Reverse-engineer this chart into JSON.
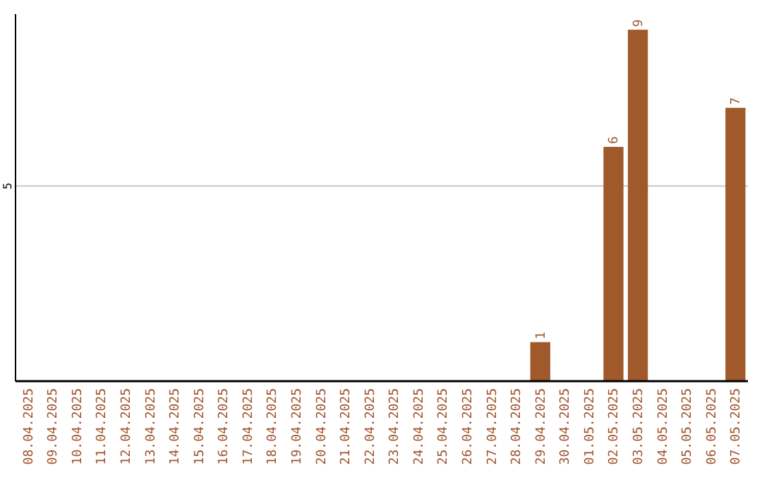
{
  "chart_data": {
    "type": "bar",
    "categories": [
      "08.04.2025",
      "09.04.2025",
      "10.04.2025",
      "11.04.2025",
      "12.04.2025",
      "13.04.2025",
      "14.04.2025",
      "15.04.2025",
      "16.04.2025",
      "17.04.2025",
      "18.04.2025",
      "19.04.2025",
      "20.04.2025",
      "21.04.2025",
      "22.04.2025",
      "23.04.2025",
      "24.04.2025",
      "25.04.2025",
      "26.04.2025",
      "27.04.2025",
      "28.04.2025",
      "29.04.2025",
      "30.04.2025",
      "01.05.2025",
      "02.05.2025",
      "03.05.2025",
      "04.05.2025",
      "05.05.2025",
      "06.05.2025",
      "07.05.2025"
    ],
    "values": [
      null,
      null,
      null,
      null,
      null,
      null,
      null,
      null,
      null,
      null,
      null,
      null,
      null,
      null,
      null,
      null,
      null,
      null,
      null,
      null,
      null,
      1,
      null,
      null,
      6,
      9,
      null,
      null,
      null,
      7
    ],
    "data_labels": true,
    "color": "#a0592a",
    "ylim": [
      0,
      9.4
    ],
    "yticks": [
      5
    ],
    "grid": "y"
  }
}
